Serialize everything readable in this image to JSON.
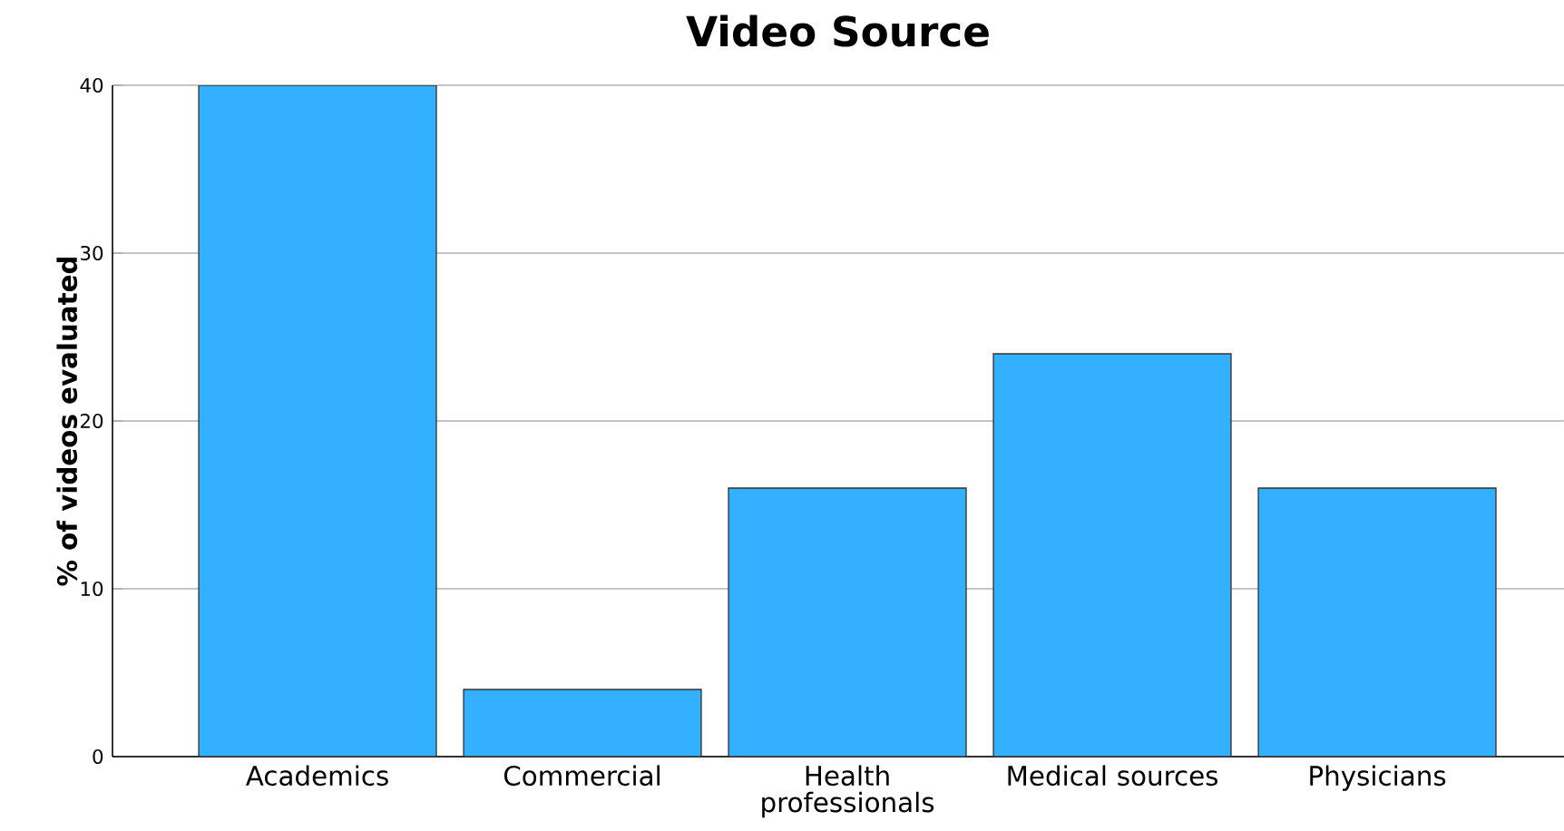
{
  "chart_data": {
    "type": "bar",
    "title": "Video Source",
    "ylabel": "% of videos evaluated",
    "categories": [
      "Academics",
      "Commercial",
      "Health professionals",
      "Medical sources",
      "Physicians"
    ],
    "values": [
      40,
      4,
      16,
      24,
      16
    ],
    "color": "#33b0ff",
    "ylim": [
      0,
      40
    ],
    "yticks": [
      0,
      10,
      20,
      30,
      40
    ],
    "grid": "y"
  }
}
